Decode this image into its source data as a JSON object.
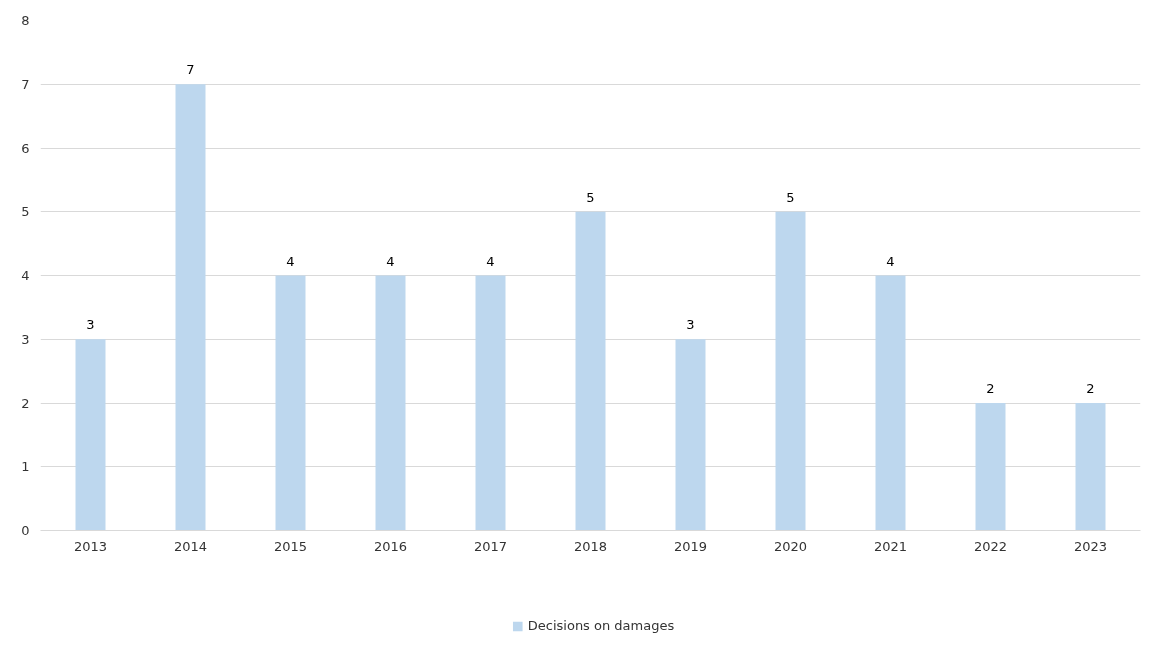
{
  "chart_data": {
    "type": "bar",
    "categories": [
      "2013",
      "2014",
      "2015",
      "2016",
      "2017",
      "2018",
      "2019",
      "2020",
      "2021",
      "2022",
      "2023"
    ],
    "series": [
      {
        "name": "Decisions on damages",
        "color": "#bdd7ee",
        "values": [
          3,
          7,
          4,
          4,
          4,
          5,
          3,
          5,
          4,
          2,
          2
        ]
      }
    ],
    "ylim": [
      0,
      8
    ],
    "yticks": [
      0,
      1,
      2,
      3,
      4,
      5,
      6,
      7,
      8
    ],
    "grid": "y",
    "legend": "bottom",
    "data_labels": true
  }
}
